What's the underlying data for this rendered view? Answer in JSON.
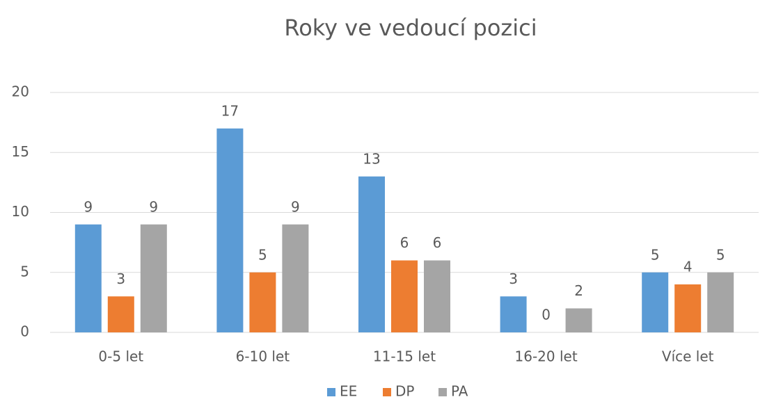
{
  "chart_data": {
    "type": "bar",
    "title": "Roky ve vedoucí pozici",
    "categories": [
      "0-5 let",
      "6-10 let",
      "11-15 let",
      "16-20 let",
      "Více let"
    ],
    "series": [
      {
        "name": "EE",
        "color": "#5b9bd5",
        "values": [
          9,
          17,
          13,
          3,
          5
        ]
      },
      {
        "name": "DP",
        "color": "#ed7d31",
        "values": [
          3,
          5,
          6,
          0,
          4
        ]
      },
      {
        "name": "PA",
        "color": "#a5a5a5",
        "values": [
          9,
          9,
          6,
          2,
          5
        ]
      }
    ],
    "ylim": [
      0,
      20
    ],
    "yticks": [
      0,
      5,
      10,
      15,
      20
    ],
    "grid": true,
    "legend": "bottom"
  }
}
